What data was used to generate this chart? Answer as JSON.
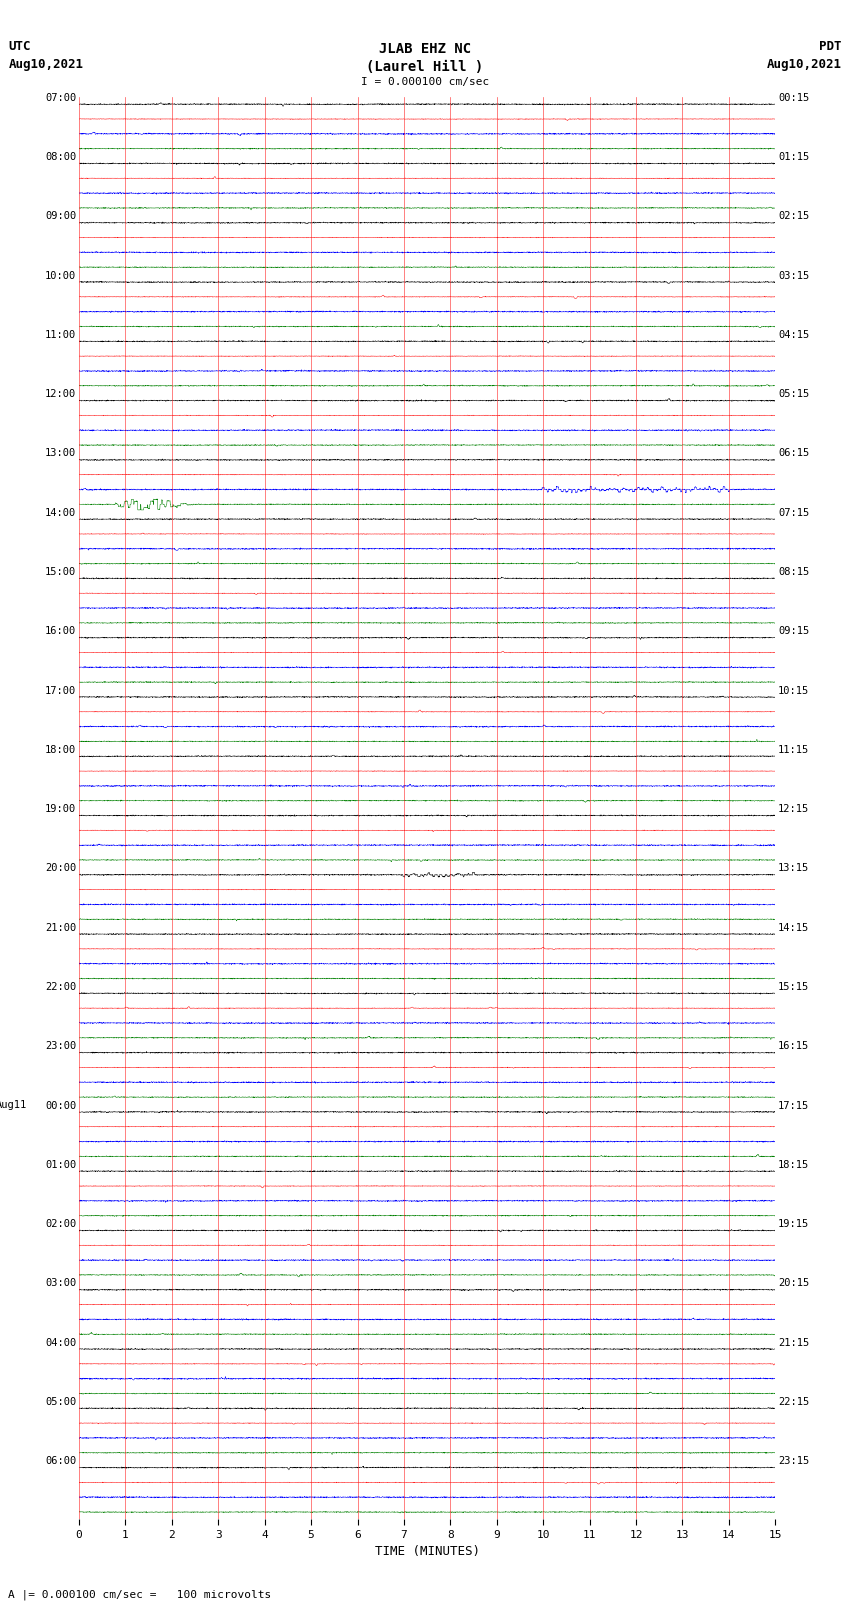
{
  "title_line1": "JLAB EHZ NC",
  "title_line2": "(Laurel Hill )",
  "scale_text": "I = 0.000100 cm/sec",
  "left_label_line1": "UTC",
  "left_label_line2": "Aug10,2021",
  "right_label_line1": "PDT",
  "right_label_line2": "Aug10,2021",
  "bottom_label": "TIME (MINUTES)",
  "footer_text": "A |= 0.000100 cm/sec =   100 microvolts",
  "xlabel_ticks": [
    0,
    1,
    2,
    3,
    4,
    5,
    6,
    7,
    8,
    9,
    10,
    11,
    12,
    13,
    14,
    15
  ],
  "utc_labels": [
    "07:00",
    "08:00",
    "09:00",
    "10:00",
    "11:00",
    "12:00",
    "13:00",
    "14:00",
    "15:00",
    "16:00",
    "17:00",
    "18:00",
    "19:00",
    "20:00",
    "21:00",
    "22:00",
    "23:00",
    "00:00",
    "01:00",
    "02:00",
    "03:00",
    "04:00",
    "05:00",
    "06:00"
  ],
  "pdt_labels": [
    "00:15",
    "01:15",
    "02:15",
    "03:15",
    "04:15",
    "05:15",
    "06:15",
    "07:15",
    "08:15",
    "09:15",
    "10:15",
    "11:15",
    "12:15",
    "13:15",
    "14:15",
    "15:15",
    "16:15",
    "17:15",
    "18:15",
    "19:15",
    "20:15",
    "21:15",
    "22:15",
    "23:15"
  ],
  "aug11_label_row": 17,
  "colors": [
    "black",
    "red",
    "blue",
    "green"
  ],
  "n_rows": 24,
  "n_traces_per_row": 4,
  "minutes_per_row": 15,
  "background_color": "white",
  "grid_color": "red",
  "grid_linewidth": 0.5,
  "trace_linewidth": 0.35,
  "noise_amplitude_black": 0.018,
  "noise_amplitude_red": 0.008,
  "noise_amplitude_blue": 0.02,
  "noise_amplitude_green": 0.015,
  "trace_band_half": 0.38,
  "seismic_green_row": 6,
  "seismic_blue_row": 6,
  "seismic_black_row": 13
}
